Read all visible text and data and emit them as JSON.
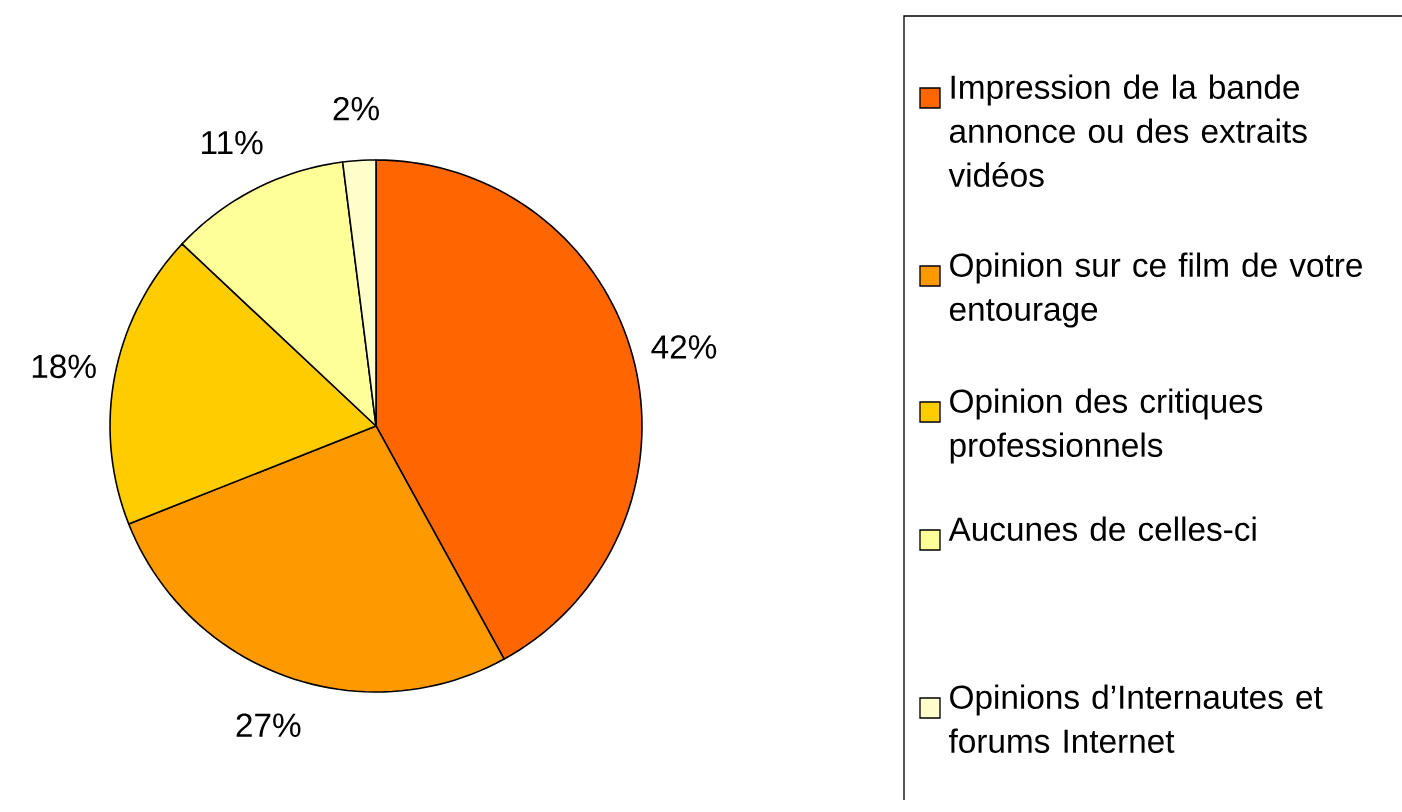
{
  "chart_data": {
    "type": "pie",
    "categories": [
      "Impression de la bande annonce ou des extraits vidéos",
      "Opinion sur ce film de votre entourage",
      "Opinion des critiques professionnels",
      "Aucunes de celles-ci",
      "Opinions d’Internautes et forums Internet"
    ],
    "values": [
      42,
      27,
      18,
      11,
      2
    ],
    "value_labels": [
      "42%",
      "27%",
      "18%",
      "11%",
      "2%"
    ],
    "colors": [
      "#ff6600",
      "#ff9900",
      "#ffcc00",
      "#ffff99",
      "#ffffcc"
    ],
    "legend": "right"
  }
}
